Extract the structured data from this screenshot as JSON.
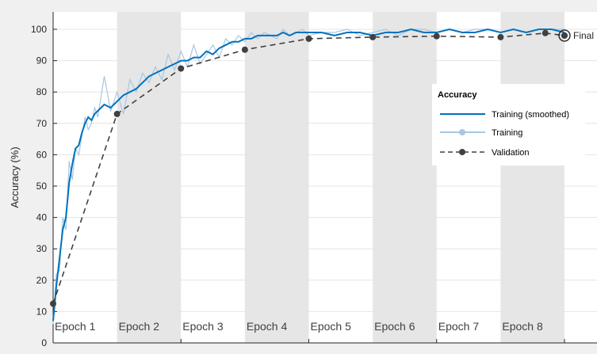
{
  "chart_data": {
    "type": "line",
    "ylabel": "Accuracy (%)",
    "ylim": [
      0,
      105
    ],
    "yticks": [
      0,
      10,
      20,
      30,
      40,
      50,
      60,
      70,
      80,
      90,
      100
    ],
    "xlim": [
      0,
      8
    ],
    "grid": true,
    "epochs": [
      "Epoch 1",
      "Epoch 2",
      "Epoch 3",
      "Epoch 4",
      "Epoch 5",
      "Epoch 6",
      "Epoch 7",
      "Epoch 8"
    ],
    "final_label": "Final",
    "legend": {
      "title": "Accuracy",
      "placement": "right",
      "items": [
        "Training (smoothed)",
        "Training",
        "Validation"
      ]
    },
    "colors": {
      "smoothed": "#0072bd",
      "training": "#a6c8e3",
      "validation": "#404040",
      "shade": "#e6e6e6",
      "plot_bg": "#ffffff",
      "grid": "#e4e4e4"
    },
    "series": [
      {
        "name": "Training (smoothed)",
        "x": [
          0,
          0.05,
          0.1,
          0.15,
          0.2,
          0.25,
          0.3,
          0.35,
          0.4,
          0.45,
          0.5,
          0.55,
          0.6,
          0.65,
          0.7,
          0.8,
          0.9,
          1.0,
          1.1,
          1.2,
          1.3,
          1.4,
          1.5,
          1.6,
          1.7,
          1.8,
          1.9,
          2.0,
          2.1,
          2.2,
          2.3,
          2.4,
          2.5,
          2.6,
          2.7,
          2.8,
          2.9,
          3.0,
          3.1,
          3.2,
          3.3,
          3.4,
          3.5,
          3.6,
          3.7,
          3.8,
          3.9,
          4.0,
          4.2,
          4.4,
          4.6,
          4.8,
          5.0,
          5.2,
          5.4,
          5.6,
          5.8,
          6.0,
          6.2,
          6.4,
          6.6,
          6.8,
          7.0,
          7.2,
          7.4,
          7.6,
          7.8,
          8.0
        ],
        "values": [
          7,
          18,
          27,
          36,
          40,
          51,
          57,
          62,
          63,
          67,
          70,
          72,
          71,
          73,
          74,
          76,
          75,
          77,
          79,
          80,
          81,
          83,
          85,
          86,
          87,
          88,
          89,
          90,
          90,
          91,
          91,
          93,
          92,
          94,
          95,
          96,
          96,
          97,
          97,
          98,
          98,
          98,
          98,
          99,
          98,
          99,
          99,
          99,
          99,
          98,
          99,
          99,
          98,
          99,
          99,
          100,
          99,
          99,
          100,
          99,
          99,
          100,
          99,
          100,
          99,
          100,
          100,
          99
        ]
      },
      {
        "name": "Training",
        "x": [
          0,
          0.05,
          0.1,
          0.15,
          0.2,
          0.25,
          0.3,
          0.35,
          0.4,
          0.45,
          0.5,
          0.55,
          0.6,
          0.65,
          0.7,
          0.8,
          0.9,
          1.0,
          1.1,
          1.2,
          1.3,
          1.4,
          1.5,
          1.6,
          1.7,
          1.8,
          1.9,
          2.0,
          2.1,
          2.2,
          2.3,
          2.4,
          2.5,
          2.6,
          2.7,
          2.8,
          2.9,
          3.0,
          3.1,
          3.2,
          3.3,
          3.4,
          3.5,
          3.6,
          3.7,
          3.8,
          3.9,
          4.0,
          4.2,
          4.4,
          4.6,
          4.8,
          5.0,
          5.2,
          5.4,
          5.6,
          5.8,
          6.0,
          6.2,
          6.4,
          6.6,
          6.8,
          7.0,
          7.2,
          7.4,
          7.6,
          7.8,
          8.0
        ],
        "values": [
          6,
          22,
          23,
          40,
          36,
          58,
          52,
          62,
          60,
          66,
          72,
          68,
          70,
          75,
          72,
          85,
          74,
          80,
          73,
          84,
          80,
          86,
          83,
          88,
          84,
          92,
          87,
          93,
          88,
          95,
          89,
          92,
          95,
          91,
          97,
          95,
          98,
          96,
          99,
          97,
          99,
          98,
          97,
          100,
          98,
          99,
          100,
          98,
          99,
          99,
          100,
          98,
          99,
          100,
          98,
          100,
          100,
          99,
          100,
          99,
          100,
          100,
          99,
          100,
          99,
          100,
          100,
          100
        ]
      },
      {
        "name": "Validation",
        "x": [
          0,
          1,
          2,
          3,
          4,
          5,
          6,
          7,
          7.7,
          8
        ],
        "values": [
          12.5,
          73,
          87.5,
          93.5,
          97,
          97.5,
          97.8,
          97.5,
          98.8,
          98
        ]
      }
    ]
  }
}
